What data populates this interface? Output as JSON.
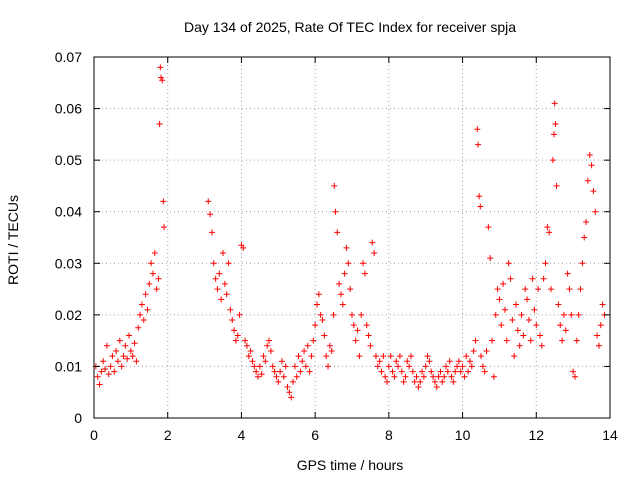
{
  "chart_data": {
    "type": "scatter",
    "title": "Day 134 of 2025, Rate Of TEC Index for receiver spja",
    "xlabel": "GPS time / hours",
    "ylabel": "ROTI / TECUs",
    "xlim": [
      0,
      14
    ],
    "ylim": [
      0,
      0.07
    ],
    "xticks": [
      "0",
      "2",
      "4",
      "6",
      "8",
      "10",
      "12",
      "14"
    ],
    "yticks": [
      "0",
      "0.01",
      "0.02",
      "0.03",
      "0.04",
      "0.05",
      "0.06",
      "0.07"
    ],
    "grid": true,
    "marker": "+",
    "color": "#ff0000",
    "series": [
      {
        "name": "ROTI",
        "points": [
          [
            0.05,
            0.01
          ],
          [
            0.1,
            0.008
          ],
          [
            0.15,
            0.0065
          ],
          [
            0.2,
            0.009
          ],
          [
            0.25,
            0.011
          ],
          [
            0.3,
            0.0095
          ],
          [
            0.35,
            0.014
          ],
          [
            0.4,
            0.0085
          ],
          [
            0.45,
            0.01
          ],
          [
            0.5,
            0.012
          ],
          [
            0.55,
            0.009
          ],
          [
            0.6,
            0.013
          ],
          [
            0.65,
            0.011
          ],
          [
            0.7,
            0.015
          ],
          [
            0.75,
            0.01
          ],
          [
            0.8,
            0.012
          ],
          [
            0.85,
            0.014
          ],
          [
            0.9,
            0.0115
          ],
          [
            0.95,
            0.016
          ],
          [
            1.0,
            0.013
          ],
          [
            1.05,
            0.012
          ],
          [
            1.1,
            0.0145
          ],
          [
            1.15,
            0.011
          ],
          [
            1.2,
            0.0175
          ],
          [
            1.25,
            0.02
          ],
          [
            1.3,
            0.022
          ],
          [
            1.35,
            0.019
          ],
          [
            1.4,
            0.024
          ],
          [
            1.45,
            0.021
          ],
          [
            1.5,
            0.026
          ],
          [
            1.55,
            0.03
          ],
          [
            1.6,
            0.028
          ],
          [
            1.65,
            0.032
          ],
          [
            1.7,
            0.025
          ],
          [
            1.75,
            0.027
          ],
          [
            1.78,
            0.057
          ],
          [
            1.8,
            0.068
          ],
          [
            1.82,
            0.066
          ],
          [
            1.85,
            0.0655
          ],
          [
            1.88,
            0.042
          ],
          [
            1.9,
            0.037
          ],
          [
            3.1,
            0.042
          ],
          [
            3.15,
            0.0395
          ],
          [
            3.2,
            0.036
          ],
          [
            3.25,
            0.03
          ],
          [
            3.3,
            0.027
          ],
          [
            3.35,
            0.025
          ],
          [
            3.4,
            0.028
          ],
          [
            3.45,
            0.023
          ],
          [
            3.5,
            0.032
          ],
          [
            3.55,
            0.026
          ],
          [
            3.6,
            0.024
          ],
          [
            3.65,
            0.03
          ],
          [
            3.7,
            0.021
          ],
          [
            3.75,
            0.019
          ],
          [
            3.8,
            0.017
          ],
          [
            3.85,
            0.015
          ],
          [
            3.9,
            0.016
          ],
          [
            3.95,
            0.02
          ],
          [
            4.0,
            0.0335
          ],
          [
            4.05,
            0.033
          ],
          [
            4.1,
            0.015
          ],
          [
            4.15,
            0.014
          ],
          [
            4.2,
            0.012
          ],
          [
            4.25,
            0.013
          ],
          [
            4.3,
            0.011
          ],
          [
            4.35,
            0.01
          ],
          [
            4.4,
            0.009
          ],
          [
            4.45,
            0.008
          ],
          [
            4.5,
            0.01
          ],
          [
            4.55,
            0.0085
          ],
          [
            4.6,
            0.012
          ],
          [
            4.65,
            0.011
          ],
          [
            4.7,
            0.014
          ],
          [
            4.75,
            0.015
          ],
          [
            4.8,
            0.013
          ],
          [
            4.85,
            0.01
          ],
          [
            4.9,
            0.009
          ],
          [
            4.95,
            0.008
          ],
          [
            5.0,
            0.007
          ],
          [
            5.05,
            0.009
          ],
          [
            5.1,
            0.011
          ],
          [
            5.15,
            0.008
          ],
          [
            5.2,
            0.01
          ],
          [
            5.25,
            0.006
          ],
          [
            5.3,
            0.005
          ],
          [
            5.35,
            0.004
          ],
          [
            5.4,
            0.007
          ],
          [
            5.45,
            0.01
          ],
          [
            5.5,
            0.008
          ],
          [
            5.55,
            0.012
          ],
          [
            5.6,
            0.009
          ],
          [
            5.65,
            0.011
          ],
          [
            5.7,
            0.013
          ],
          [
            5.75,
            0.01
          ],
          [
            5.8,
            0.014
          ],
          [
            5.85,
            0.009
          ],
          [
            5.9,
            0.012
          ],
          [
            5.95,
            0.015
          ],
          [
            6.0,
            0.018
          ],
          [
            6.05,
            0.022
          ],
          [
            6.1,
            0.024
          ],
          [
            6.15,
            0.02
          ],
          [
            6.2,
            0.019
          ],
          [
            6.25,
            0.016
          ],
          [
            6.3,
            0.012
          ],
          [
            6.35,
            0.01
          ],
          [
            6.4,
            0.014
          ],
          [
            6.45,
            0.013
          ],
          [
            6.5,
            0.02
          ],
          [
            6.52,
            0.045
          ],
          [
            6.55,
            0.04
          ],
          [
            6.6,
            0.036
          ],
          [
            6.65,
            0.026
          ],
          [
            6.7,
            0.024
          ],
          [
            6.75,
            0.022
          ],
          [
            6.8,
            0.028
          ],
          [
            6.85,
            0.033
          ],
          [
            6.9,
            0.03
          ],
          [
            6.95,
            0.025
          ],
          [
            7.0,
            0.02
          ],
          [
            7.05,
            0.018
          ],
          [
            7.1,
            0.015
          ],
          [
            7.15,
            0.017
          ],
          [
            7.2,
            0.012
          ],
          [
            7.25,
            0.02
          ],
          [
            7.3,
            0.03
          ],
          [
            7.35,
            0.028
          ],
          [
            7.4,
            0.018
          ],
          [
            7.45,
            0.016
          ],
          [
            7.5,
            0.014
          ],
          [
            7.55,
            0.034
          ],
          [
            7.6,
            0.032
          ],
          [
            7.65,
            0.012
          ],
          [
            7.7,
            0.01
          ],
          [
            7.75,
            0.011
          ],
          [
            7.8,
            0.009
          ],
          [
            7.85,
            0.012
          ],
          [
            7.9,
            0.008
          ],
          [
            7.95,
            0.007
          ],
          [
            8.0,
            0.01
          ],
          [
            8.05,
            0.012
          ],
          [
            8.1,
            0.009
          ],
          [
            8.15,
            0.008
          ],
          [
            8.2,
            0.011
          ],
          [
            8.25,
            0.01
          ],
          [
            8.3,
            0.012
          ],
          [
            8.35,
            0.009
          ],
          [
            8.4,
            0.007
          ],
          [
            8.45,
            0.008
          ],
          [
            8.5,
            0.011
          ],
          [
            8.55,
            0.01
          ],
          [
            8.6,
            0.012
          ],
          [
            8.65,
            0.009
          ],
          [
            8.7,
            0.007
          ],
          [
            8.75,
            0.008
          ],
          [
            8.8,
            0.006
          ],
          [
            8.85,
            0.007
          ],
          [
            8.9,
            0.009
          ],
          [
            8.95,
            0.008
          ],
          [
            9.0,
            0.01
          ],
          [
            9.05,
            0.012
          ],
          [
            9.1,
            0.011
          ],
          [
            9.15,
            0.009
          ],
          [
            9.2,
            0.008
          ],
          [
            9.25,
            0.007
          ],
          [
            9.3,
            0.006
          ],
          [
            9.35,
            0.008
          ],
          [
            9.4,
            0.009
          ],
          [
            9.45,
            0.007
          ],
          [
            9.5,
            0.008
          ],
          [
            9.55,
            0.01
          ],
          [
            9.6,
            0.009
          ],
          [
            9.65,
            0.011
          ],
          [
            9.7,
            0.008
          ],
          [
            9.75,
            0.007
          ],
          [
            9.8,
            0.009
          ],
          [
            9.85,
            0.01
          ],
          [
            9.9,
            0.011
          ],
          [
            9.95,
            0.009
          ],
          [
            10.0,
            0.01
          ],
          [
            10.05,
            0.008
          ],
          [
            10.1,
            0.012
          ],
          [
            10.15,
            0.009
          ],
          [
            10.2,
            0.011
          ],
          [
            10.25,
            0.01
          ],
          [
            10.3,
            0.013
          ],
          [
            10.35,
            0.015
          ],
          [
            10.4,
            0.056
          ],
          [
            10.42,
            0.053
          ],
          [
            10.45,
            0.043
          ],
          [
            10.48,
            0.041
          ],
          [
            10.5,
            0.012
          ],
          [
            10.55,
            0.01
          ],
          [
            10.6,
            0.009
          ],
          [
            10.65,
            0.013
          ],
          [
            10.7,
            0.037
          ],
          [
            10.75,
            0.031
          ],
          [
            10.8,
            0.015
          ],
          [
            10.85,
            0.008
          ],
          [
            10.9,
            0.02
          ],
          [
            10.95,
            0.025
          ],
          [
            11.0,
            0.023
          ],
          [
            11.05,
            0.018
          ],
          [
            11.1,
            0.026
          ],
          [
            11.15,
            0.021
          ],
          [
            11.2,
            0.015
          ],
          [
            11.25,
            0.03
          ],
          [
            11.3,
            0.027
          ],
          [
            11.35,
            0.019
          ],
          [
            11.4,
            0.012
          ],
          [
            11.45,
            0.022
          ],
          [
            11.5,
            0.017
          ],
          [
            11.55,
            0.014
          ],
          [
            11.6,
            0.02
          ],
          [
            11.65,
            0.016
          ],
          [
            11.7,
            0.025
          ],
          [
            11.75,
            0.023
          ],
          [
            11.8,
            0.019
          ],
          [
            11.85,
            0.015
          ],
          [
            11.9,
            0.027
          ],
          [
            11.95,
            0.021
          ],
          [
            12.0,
            0.018
          ],
          [
            12.05,
            0.025
          ],
          [
            12.1,
            0.016
          ],
          [
            12.15,
            0.014
          ],
          [
            12.2,
            0.027
          ],
          [
            12.25,
            0.03
          ],
          [
            12.3,
            0.037
          ],
          [
            12.35,
            0.036
          ],
          [
            12.4,
            0.025
          ],
          [
            12.45,
            0.05
          ],
          [
            12.48,
            0.055
          ],
          [
            12.5,
            0.061
          ],
          [
            12.52,
            0.057
          ],
          [
            12.55,
            0.045
          ],
          [
            12.6,
            0.022
          ],
          [
            12.65,
            0.018
          ],
          [
            12.7,
            0.015
          ],
          [
            12.75,
            0.02
          ],
          [
            12.8,
            0.017
          ],
          [
            12.85,
            0.028
          ],
          [
            12.9,
            0.025
          ],
          [
            12.95,
            0.02
          ],
          [
            13.0,
            0.009
          ],
          [
            13.05,
            0.008
          ],
          [
            13.1,
            0.015
          ],
          [
            13.15,
            0.02
          ],
          [
            13.2,
            0.025
          ],
          [
            13.25,
            0.03
          ],
          [
            13.3,
            0.035
          ],
          [
            13.35,
            0.038
          ],
          [
            13.4,
            0.046
          ],
          [
            13.45,
            0.051
          ],
          [
            13.5,
            0.049
          ],
          [
            13.55,
            0.044
          ],
          [
            13.6,
            0.04
          ],
          [
            13.65,
            0.016
          ],
          [
            13.7,
            0.014
          ],
          [
            13.75,
            0.018
          ],
          [
            13.8,
            0.022
          ],
          [
            13.85,
            0.02
          ]
        ]
      }
    ]
  }
}
